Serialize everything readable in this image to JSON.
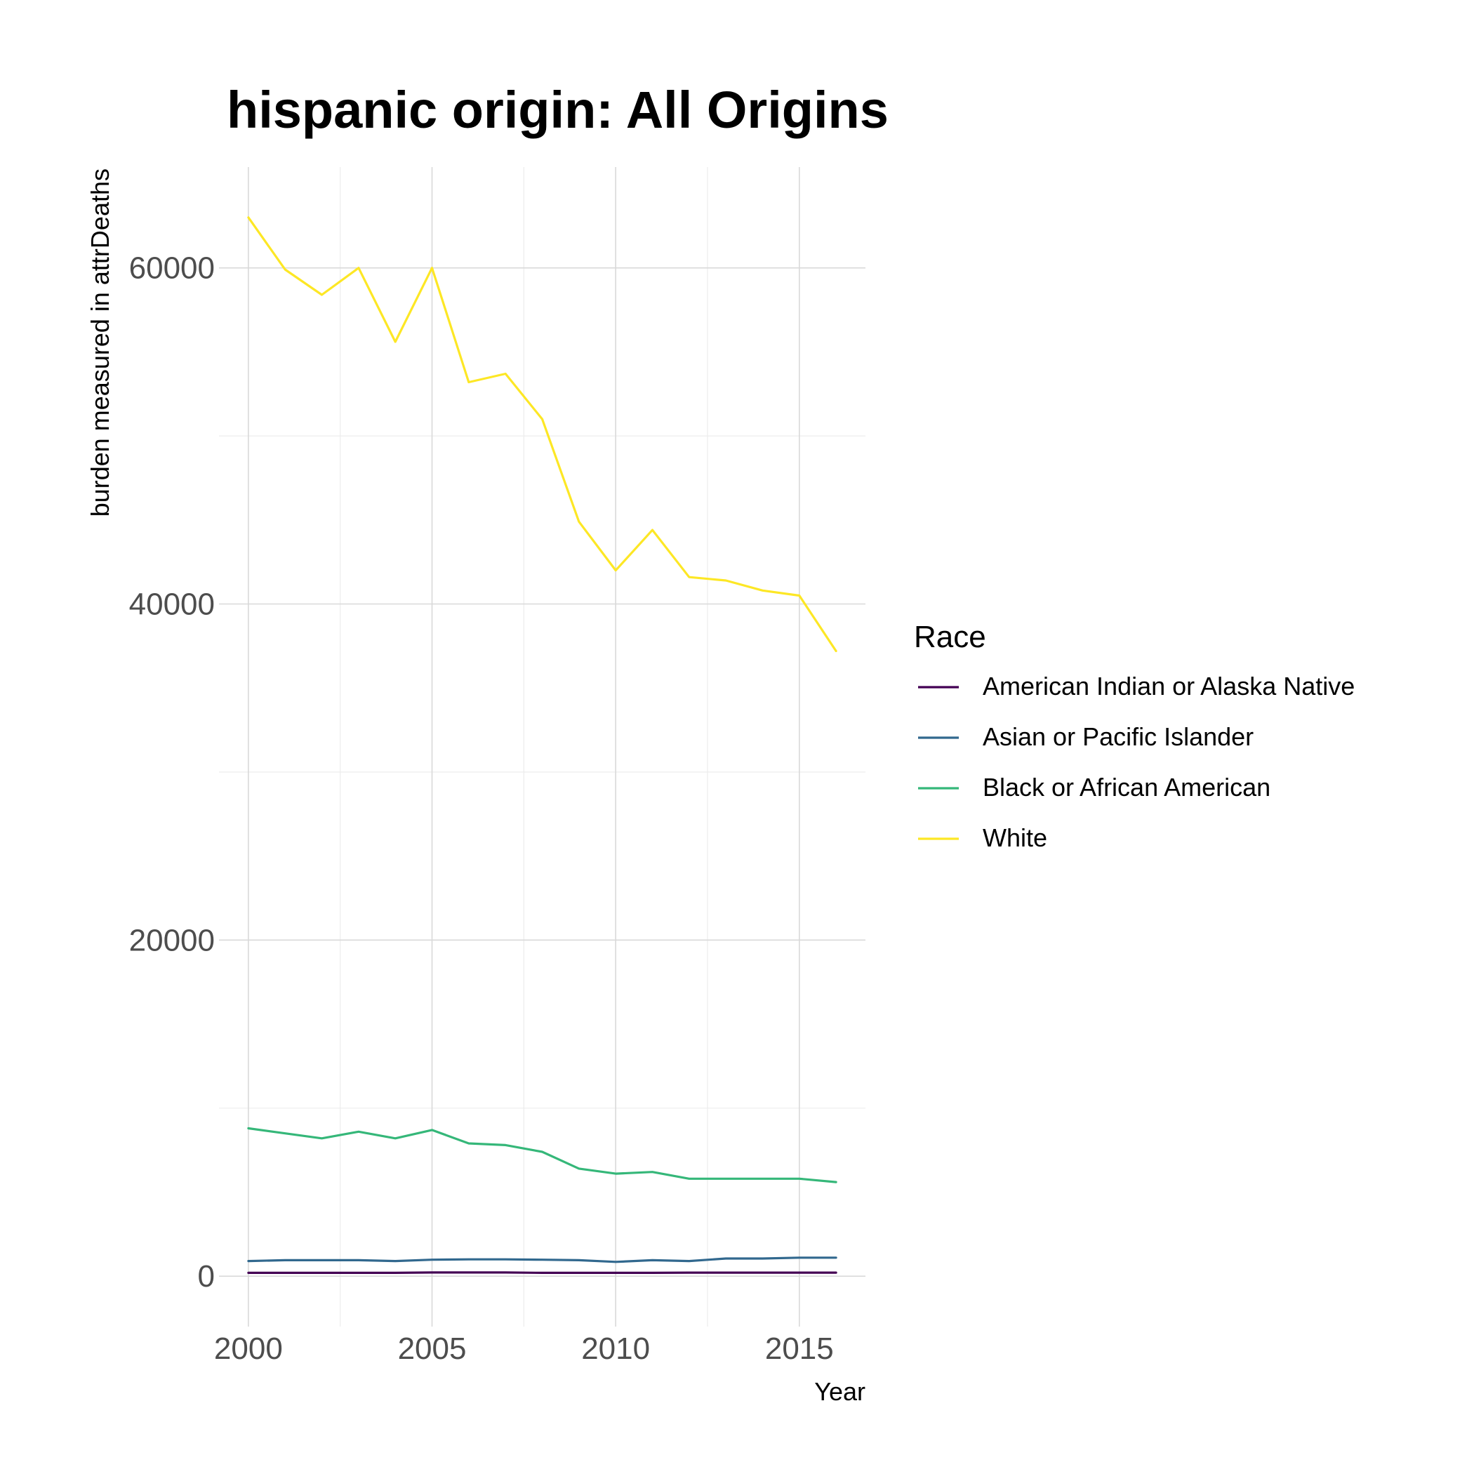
{
  "chart_data": {
    "type": "line",
    "title": "hispanic origin: All Origins",
    "xlabel": "Year",
    "ylabel": "burden measured in attrDeaths",
    "x": [
      2000,
      2001,
      2002,
      2003,
      2004,
      2005,
      2006,
      2007,
      2008,
      2009,
      2010,
      2011,
      2012,
      2013,
      2014,
      2015,
      2016
    ],
    "xlim": [
      1999.2,
      2016.8
    ],
    "ylim": [
      -3000,
      66000
    ],
    "x_ticks": [
      2000,
      2005,
      2010,
      2015
    ],
    "x_tick_labels": [
      "2000",
      "2005",
      "2010",
      "2015"
    ],
    "x_minor_ticks": [
      2002.5,
      2007.5,
      2012.5
    ],
    "y_ticks": [
      0,
      20000,
      40000,
      60000
    ],
    "y_tick_labels": [
      "0",
      "20000",
      "40000",
      "60000"
    ],
    "y_minor_ticks": [
      10000,
      30000,
      50000
    ],
    "grid": true,
    "legend": {
      "title": "Race",
      "position": "right"
    },
    "series": [
      {
        "name": "American Indian or Alaska Native",
        "color": "#440154",
        "values": [
          200,
          200,
          200,
          200,
          200,
          220,
          220,
          220,
          200,
          200,
          200,
          200,
          210,
          210,
          210,
          210,
          210
        ]
      },
      {
        "name": "Asian or Pacific Islander",
        "color": "#31688E",
        "values": [
          900,
          950,
          950,
          950,
          900,
          980,
          1000,
          1000,
          980,
          950,
          850,
          950,
          900,
          1050,
          1050,
          1100,
          1100
        ]
      },
      {
        "name": "Black or African American",
        "color": "#35B779",
        "values": [
          8800,
          8500,
          8200,
          8600,
          8200,
          8700,
          7900,
          7800,
          7400,
          6400,
          6100,
          6200,
          5800,
          5800,
          5800,
          5800,
          5600
        ]
      },
      {
        "name": "White",
        "color": "#FDE725",
        "values": [
          63000,
          59900,
          58400,
          60000,
          55600,
          60000,
          53200,
          53700,
          51000,
          44900,
          42000,
          44400,
          41600,
          41400,
          40800,
          40500,
          37200
        ]
      }
    ]
  }
}
